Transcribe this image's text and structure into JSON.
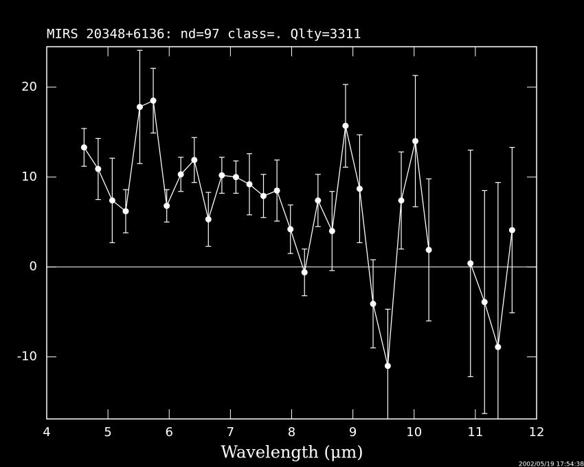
{
  "chart_data": {
    "type": "errorbar-line",
    "title": "MIRS 20348+6136:    nd=97   class=.   Qlty=3311",
    "x_label": "Wavelength (μm)",
    "timestamp": "2002/05/19 17:54:38",
    "color": "#ffffff",
    "x": [
      4.61,
      4.84,
      5.07,
      5.29,
      5.52,
      5.74,
      5.96,
      6.19,
      6.41,
      6.64,
      6.86,
      7.09,
      7.31,
      7.54,
      7.76,
      7.98,
      8.21,
      8.43,
      8.66,
      8.88,
      9.11,
      9.33,
      9.57,
      9.79,
      10.02,
      10.24,
      10.47,
      10.69,
      10.92,
      11.15,
      11.37,
      11.6
    ],
    "values": [
      13.3,
      10.9,
      7.4,
      6.2,
      17.8,
      18.5,
      6.8,
      10.3,
      11.9,
      5.3,
      10.2,
      10.0,
      9.2,
      7.9,
      8.5,
      4.2,
      -0.6,
      7.4,
      4.0,
      15.7,
      8.7,
      -4.1,
      -11.0,
      7.4,
      14.0,
      1.9,
      null,
      null,
      0.4,
      -3.9,
      -8.9,
      4.1
    ],
    "errors": [
      2.1,
      3.4,
      4.7,
      2.4,
      6.3,
      3.6,
      1.8,
      1.9,
      2.5,
      3.0,
      2.0,
      1.8,
      3.4,
      2.4,
      3.4,
      2.7,
      2.6,
      2.9,
      4.4,
      4.6,
      6.0,
      4.9,
      6.3,
      5.4,
      7.3,
      7.9,
      null,
      null,
      12.6,
      12.4,
      18.3,
      9.2
    ],
    "reference_line": 0,
    "xlim": [
      4,
      12
    ],
    "ylim": [
      -16.9,
      24.5
    ],
    "xticks": [
      4,
      5,
      6,
      7,
      8,
      9,
      10,
      11,
      12
    ],
    "yticks": [
      -10,
      0,
      10,
      20
    ]
  }
}
